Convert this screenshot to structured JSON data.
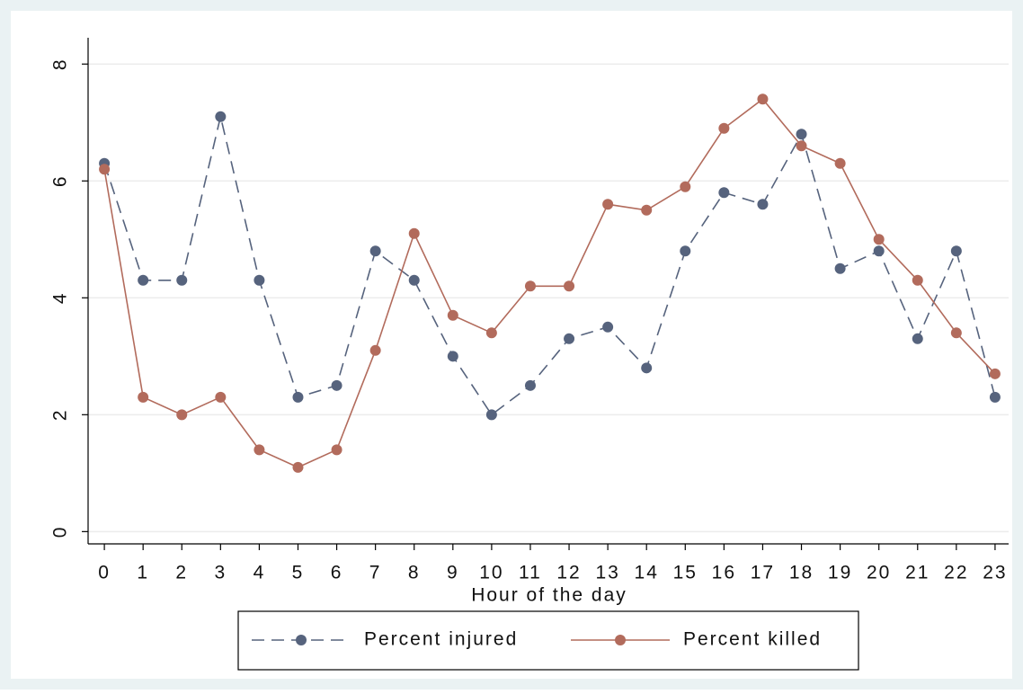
{
  "chart_data": {
    "type": "line",
    "x": [
      0,
      1,
      2,
      3,
      4,
      5,
      6,
      7,
      8,
      9,
      10,
      11,
      12,
      13,
      14,
      15,
      16,
      17,
      18,
      19,
      20,
      21,
      22,
      23
    ],
    "x_label": "Hour of the day",
    "series": [
      {
        "name": "Percent injured",
        "color": "#56637d",
        "dash": true,
        "values": [
          6.3,
          4.3,
          4.3,
          7.1,
          4.3,
          2.3,
          2.5,
          4.8,
          4.3,
          3.0,
          2.0,
          2.5,
          3.3,
          3.5,
          2.8,
          4.8,
          5.8,
          5.6,
          6.8,
          4.5,
          4.8,
          3.3,
          4.8,
          2.3
        ]
      },
      {
        "name": "Percent killed",
        "color": "#b26b5c",
        "dash": false,
        "values": [
          6.2,
          2.3,
          2.0,
          2.3,
          1.4,
          1.1,
          1.4,
          3.1,
          5.1,
          3.7,
          3.4,
          4.2,
          4.2,
          5.6,
          5.5,
          5.9,
          6.9,
          7.4,
          6.6,
          6.3,
          5.0,
          4.3,
          3.4,
          2.7
        ]
      }
    ],
    "xlim": [
      -0.42,
      23.35
    ],
    "xticks": [
      0,
      1,
      2,
      3,
      4,
      5,
      6,
      7,
      8,
      9,
      10,
      11,
      12,
      13,
      14,
      15,
      16,
      17,
      18,
      19,
      20,
      21,
      22,
      23
    ],
    "ylim": [
      -0.21,
      8.45
    ],
    "yticks": [
      0,
      2,
      4,
      6,
      8
    ],
    "grid": true,
    "legend": "bottom"
  }
}
